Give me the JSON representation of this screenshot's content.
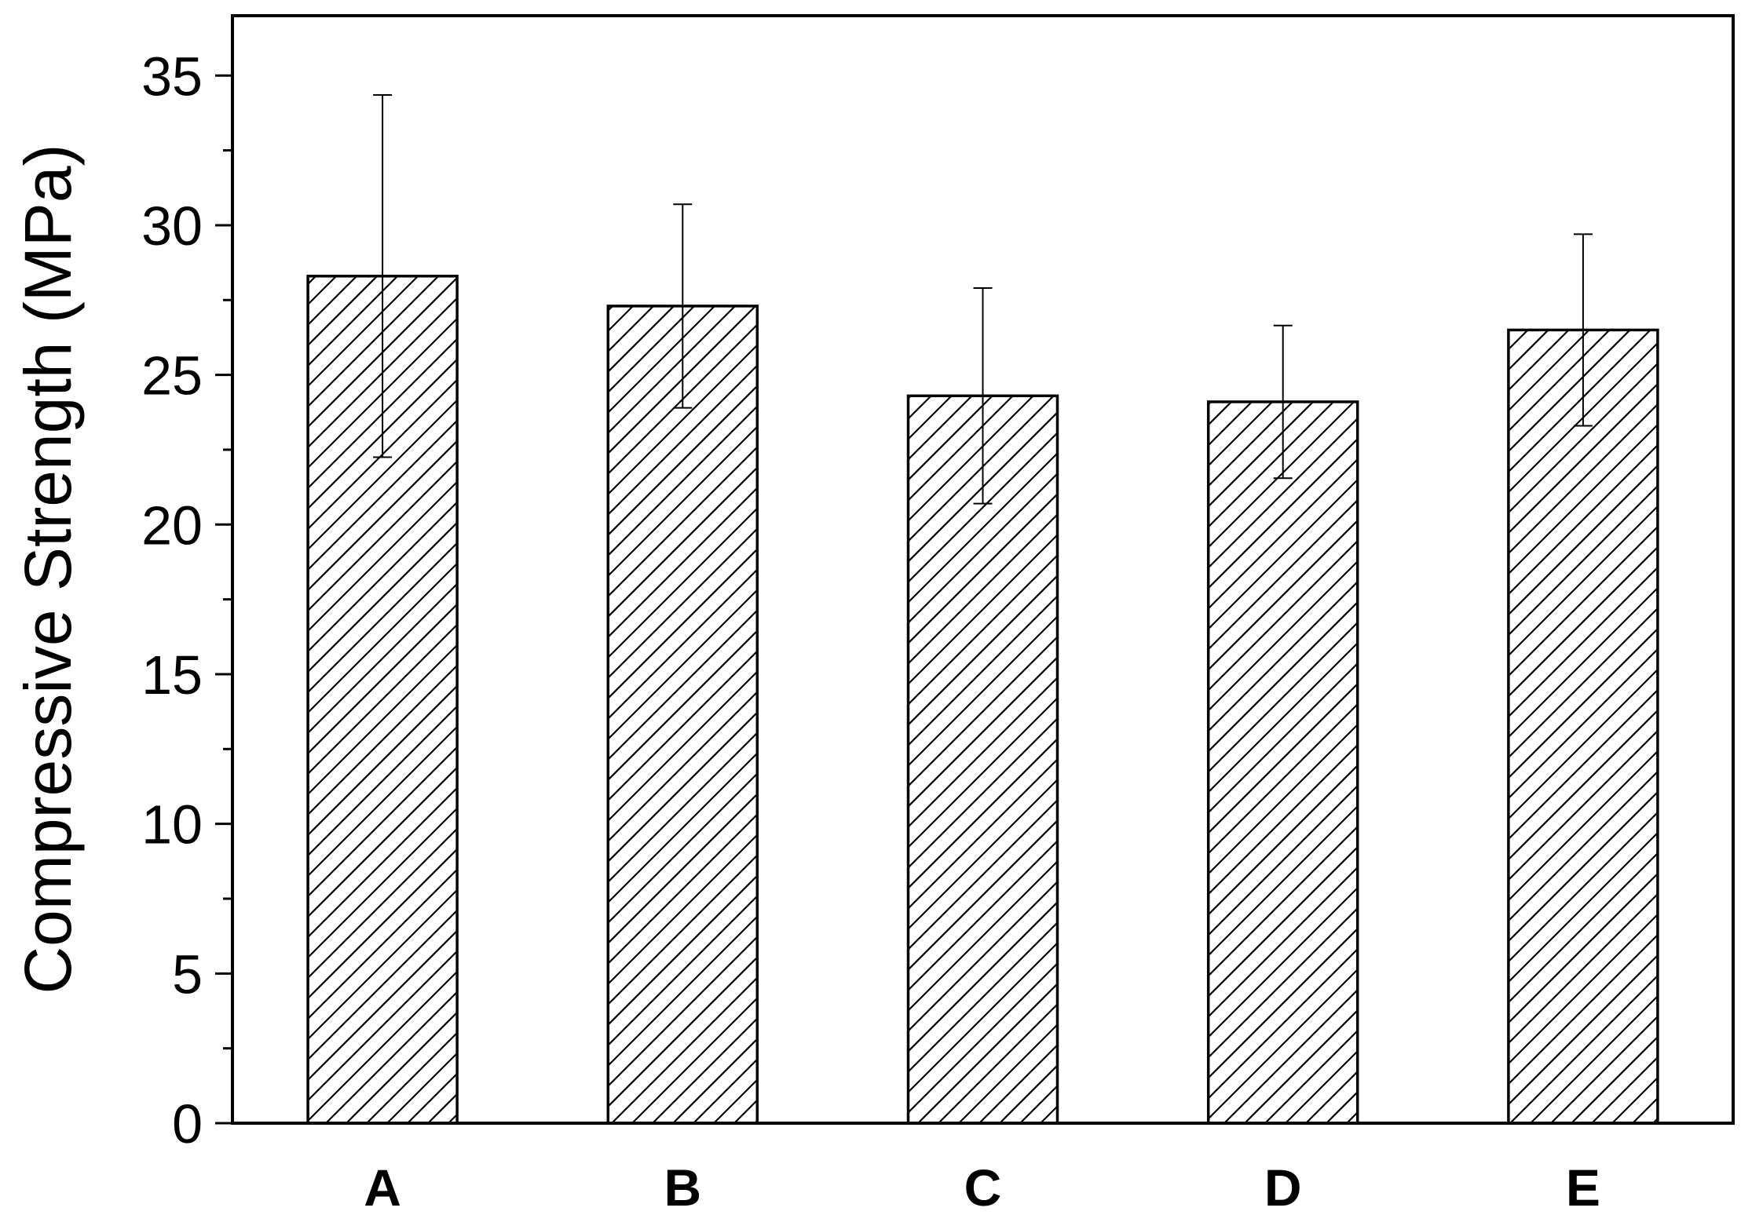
{
  "chart_data": {
    "type": "bar",
    "title": "",
    "xlabel": "",
    "ylabel": "Compressive Strength (MPa)",
    "categories": [
      "A",
      "B",
      "C",
      "D",
      "E"
    ],
    "values": [
      28.3,
      27.3,
      24.3,
      24.1,
      26.5
    ],
    "errors": [
      6.05,
      3.4,
      3.6,
      2.55,
      3.2
    ],
    "ylim": [
      0,
      37
    ],
    "yticks": [
      0,
      5,
      10,
      15,
      20,
      25,
      30,
      35
    ],
    "grid": false,
    "legend": "none",
    "bar_fill": "hatched-diagonal",
    "colors": {
      "bar_edge": "#000000",
      "hatch": "#000000",
      "background": "#ffffff"
    }
  }
}
